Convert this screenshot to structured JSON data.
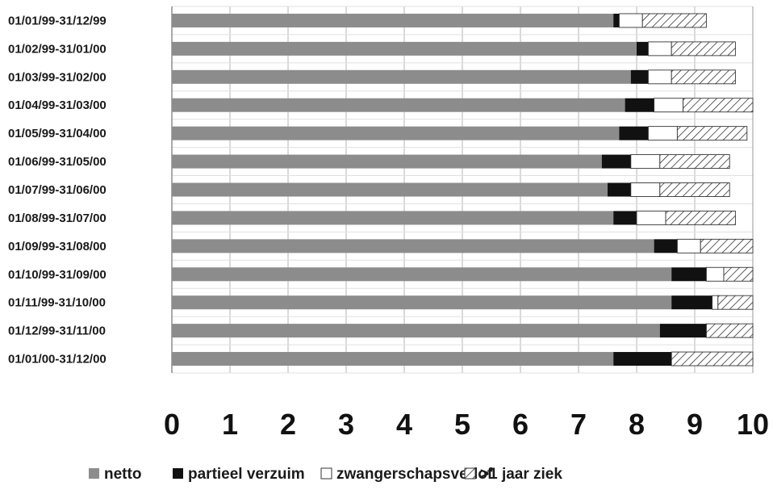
{
  "chart_data": {
    "type": "bar",
    "orientation": "horizontal",
    "stacked": true,
    "title": "",
    "xlabel": "",
    "ylabel": "",
    "xlim": [
      0,
      10
    ],
    "xticks": [
      "0",
      "1",
      "2",
      "3",
      "4",
      "5",
      "6",
      "7",
      "8",
      "9",
      "10"
    ],
    "grid": true,
    "legend_position": "bottom",
    "categories": [
      "01/01/99-31/12/99",
      "01/02/99-31/01/00",
      "01/03/99-31/02/00",
      "01/04/99-31/03/00",
      "01/05/99-31/04/00",
      "01/06/99-31/05/00",
      "01/07/99-31/06/00",
      "01/08/99-31/07/00",
      "01/09/99-31/08/00",
      "01/10/99-31/09/00",
      "01/11/99-31/10/00",
      "01/12/99-31/11/00",
      "01/01/00-31/12/00"
    ],
    "series": [
      {
        "name": "netto",
        "pattern": "solid",
        "color": "#8c8c8c",
        "values": [
          7.6,
          8.0,
          7.9,
          7.8,
          7.7,
          7.4,
          7.5,
          7.6,
          8.3,
          8.6,
          8.6,
          8.4,
          7.6
        ]
      },
      {
        "name": "partieel verzuim",
        "pattern": "solid",
        "color": "#111111",
        "values": [
          0.1,
          0.2,
          0.3,
          0.5,
          0.5,
          0.5,
          0.4,
          0.4,
          0.4,
          0.6,
          0.7,
          0.8,
          1.0
        ]
      },
      {
        "name": "zwangerschapsverlof",
        "pattern": "solid",
        "color": "#ffffff",
        "values": [
          0.4,
          0.4,
          0.4,
          0.5,
          0.5,
          0.5,
          0.5,
          0.5,
          0.4,
          0.3,
          0.1,
          0.0,
          0.0
        ]
      },
      {
        "name": ">1 jaar ziek",
        "pattern": "hatched",
        "color": "#ffffff",
        "values": [
          1.1,
          1.1,
          1.1,
          1.2,
          1.2,
          1.2,
          1.2,
          1.2,
          0.9,
          0.5,
          0.6,
          0.8,
          1.4
        ]
      }
    ]
  }
}
